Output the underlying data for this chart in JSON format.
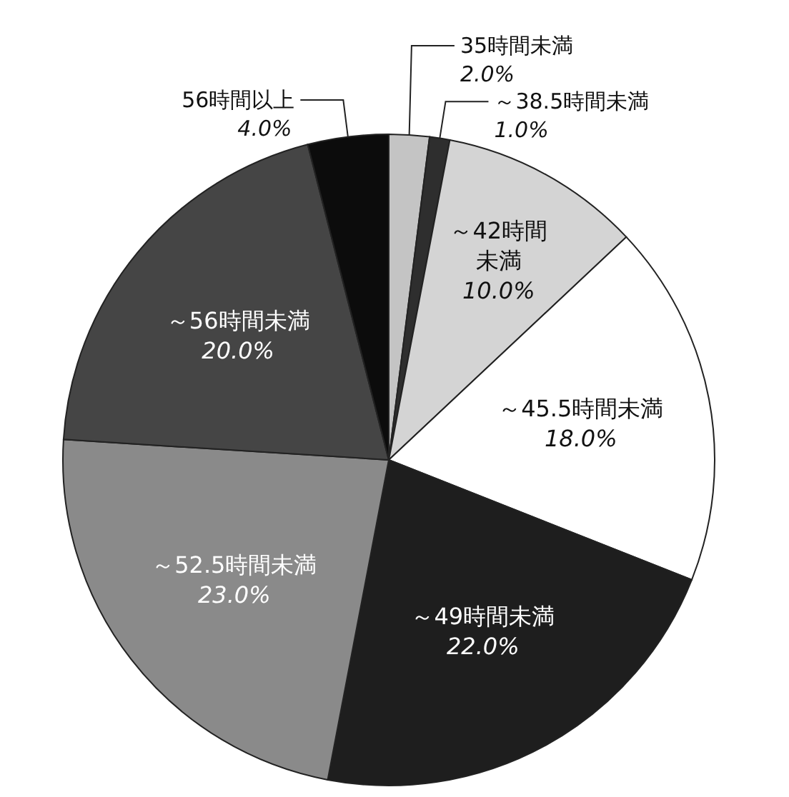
{
  "chart_data": {
    "type": "pie",
    "legend": false,
    "categories": [
      "35時間未満",
      "～38.5時間未満",
      "～42時間未満",
      "～45.5時間未満",
      "～49時間未満",
      "～52.5時間未満",
      "～56時間未満",
      "56時間以上"
    ],
    "values": [
      2.0,
      1.0,
      10.0,
      18.0,
      22.0,
      23.0,
      20.0,
      4.0
    ],
    "value_labels": [
      "2.0%",
      "1.0%",
      "10.0%",
      "18.0%",
      "22.0%",
      "23.0%",
      "20.0%",
      "4.0%"
    ],
    "colors": [
      "#c4c4c4",
      "#2e2e2e",
      "#d4d4d4",
      "#ffffff",
      "#1e1e1e",
      "#8a8a8a",
      "#454545",
      "#0c0c0c"
    ]
  }
}
